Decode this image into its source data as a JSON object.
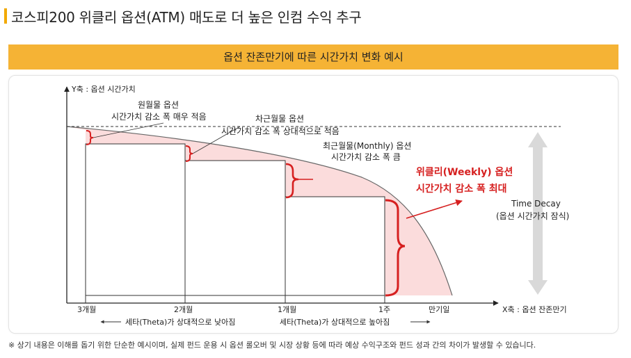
{
  "header": {
    "title": "코스피200 위클리 옵션(ATM) 매도로 더 높은 인컴 수익 추구",
    "accent_color": "#f2a900"
  },
  "banner": {
    "text": "옵션 잔존만기에 따른 시간가치 변화 예시",
    "color": "#f5b335"
  },
  "diagram": {
    "y_axis_label": "Y축 : 옵션 시간가치",
    "x_axis_label": "X축 : 옵션 잔존만기",
    "x_ticks": [
      "3개월",
      "2개월",
      "1개월",
      "1주",
      "만기일"
    ],
    "annotations": {
      "far_month": [
        "원월물 옵션",
        "시간가치 감소 폭 매우 적음"
      ],
      "next_month": [
        "차근월물 옵션",
        "시간가치 감소 폭 상대적으로 적음"
      ],
      "near_month": [
        "최근월물(Monthly)  옵션",
        "시간가치 감소 폭 큼"
      ],
      "weekly": [
        "위클리(Weekly) 옵션",
        "시간가치 감소 폭 최대"
      ],
      "decay": [
        "Time Decay",
        "(옵션 시간가치 잠식)"
      ]
    },
    "theta_left": "세타(Theta)가  상대적으로 낮아짐",
    "theta_right": "세타(Theta)가   상대적으로 높아짐",
    "highlight_color": "#d62020",
    "fill_color": "#fbdcdc"
  },
  "footnote": "※ 상기 내용은 이해를 돕기 위한 단순한 예시이며, 실제 펀드 운용 시 옵션 롤오버 및 시장 상황 등에 따라 예상 수익구조와 펀드 성과 간의 차이가 발생할 수 있습니다."
}
